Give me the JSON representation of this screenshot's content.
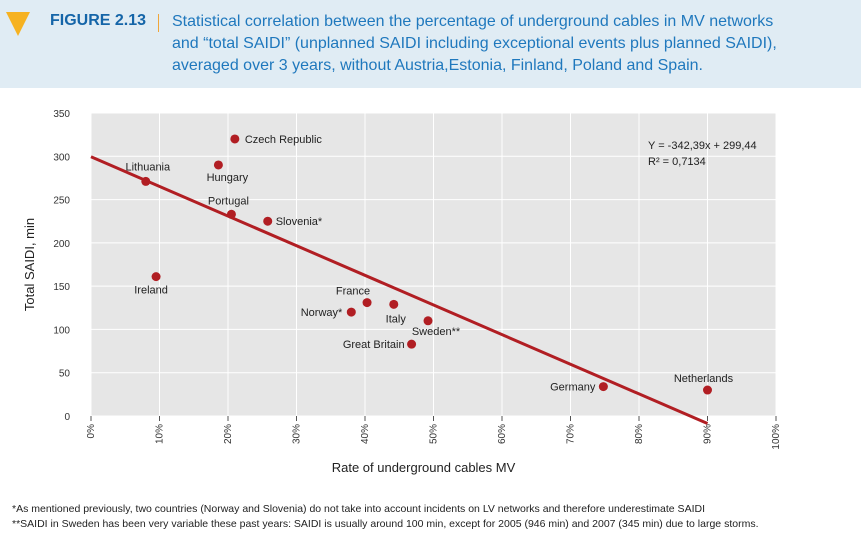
{
  "figure": {
    "label": "FIGURE 2.13",
    "caption_lines": [
      "Statistical correlation between the percentage of underground cables in MV networks",
      "and “total SAIDI” (unplanned SAIDI including exceptional events plus planned SAIDI),",
      "averaged over 3 years, without Austria,Estonia, Finland, Poland and Spain."
    ]
  },
  "colors": {
    "header_bg": "#e0ecf4",
    "accent": "#f6b221",
    "title": "#1565a8",
    "point": "#b11e23",
    "plot_bg": "#e6e6e6"
  },
  "chart_data": {
    "type": "scatter",
    "xlabel": "Rate of underground cables MV",
    "ylabel": "Total SAIDI, min",
    "xlim": [
      0,
      100
    ],
    "ylim": [
      0,
      350
    ],
    "x_ticks": [
      0,
      10,
      20,
      30,
      40,
      50,
      60,
      70,
      80,
      90,
      100
    ],
    "x_tick_labels": [
      "0%",
      "10%",
      "20%",
      "30%",
      "40%",
      "50%",
      "60%",
      "70%",
      "80%",
      "90%",
      "100%"
    ],
    "y_ticks": [
      0,
      50,
      100,
      150,
      200,
      250,
      300,
      350
    ],
    "y_tick_labels": [
      "0",
      "50",
      "100",
      "150",
      "200",
      "250",
      "300",
      "350"
    ],
    "grid": true,
    "points": [
      {
        "label": "Czech Republic",
        "x": 21,
        "y": 320
      },
      {
        "label": "Hungary",
        "x": 18.6,
        "y": 290
      },
      {
        "label": "Lithuania",
        "x": 8,
        "y": 271
      },
      {
        "label": "Portugal",
        "x": 20.5,
        "y": 233
      },
      {
        "label": "Slovenia*",
        "x": 25.8,
        "y": 225
      },
      {
        "label": "Ireland",
        "x": 9.5,
        "y": 161
      },
      {
        "label": "France",
        "x": 40.3,
        "y": 131
      },
      {
        "label": "Italy",
        "x": 44.2,
        "y": 129
      },
      {
        "label": "Norway*",
        "x": 38,
        "y": 120
      },
      {
        "label": "Sweden**",
        "x": 49.2,
        "y": 110
      },
      {
        "label": "Great Britain",
        "x": 46.8,
        "y": 83
      },
      {
        "label": "Germany",
        "x": 74.8,
        "y": 34
      },
      {
        "label": "Netherlands",
        "x": 90,
        "y": 30
      }
    ],
    "trendline": {
      "slope": -342.39,
      "intercept": 299.44,
      "x_range": [
        0,
        90
      ]
    },
    "annotations": [
      "Y = -342,39x + 299,44",
      "R² = 0,7134"
    ]
  },
  "footnotes": [
    "*As mentioned previously, two countries (Norway and Slovenia) do not take into account incidents on LV networks and therefore underestimate SAIDI",
    "**SAIDI in Sweden has been very variable these past years: SAIDI is usually around 100 min, except for 2005 (946 min) and 2007 (345 min) due to large storms."
  ]
}
